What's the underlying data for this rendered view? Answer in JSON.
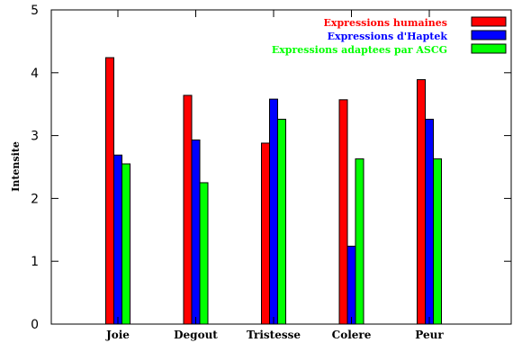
{
  "chart_data": {
    "type": "bar",
    "title": "",
    "xlabel": "",
    "ylabel": "Intensite",
    "ylim": [
      0,
      5
    ],
    "yticks": [
      "0",
      "1",
      "2",
      "3",
      "4",
      "5"
    ],
    "categories": [
      "Joie",
      "Degout",
      "Tristesse",
      "Colere",
      "Peur"
    ],
    "grid": false,
    "legend": "top-right",
    "series": [
      {
        "name": "Expressions humaines",
        "color": "#ff0000",
        "values": [
          4.24,
          3.64,
          2.88,
          3.57,
          3.89
        ]
      },
      {
        "name": "Expressions d'Haptek",
        "color": "#0000ff",
        "values": [
          2.69,
          2.93,
          3.58,
          1.24,
          3.26
        ]
      },
      {
        "name": "Expressions adaptees par ASCG",
        "color": "#00ff00",
        "values": [
          2.55,
          2.25,
          3.26,
          2.63,
          2.63
        ]
      }
    ]
  }
}
